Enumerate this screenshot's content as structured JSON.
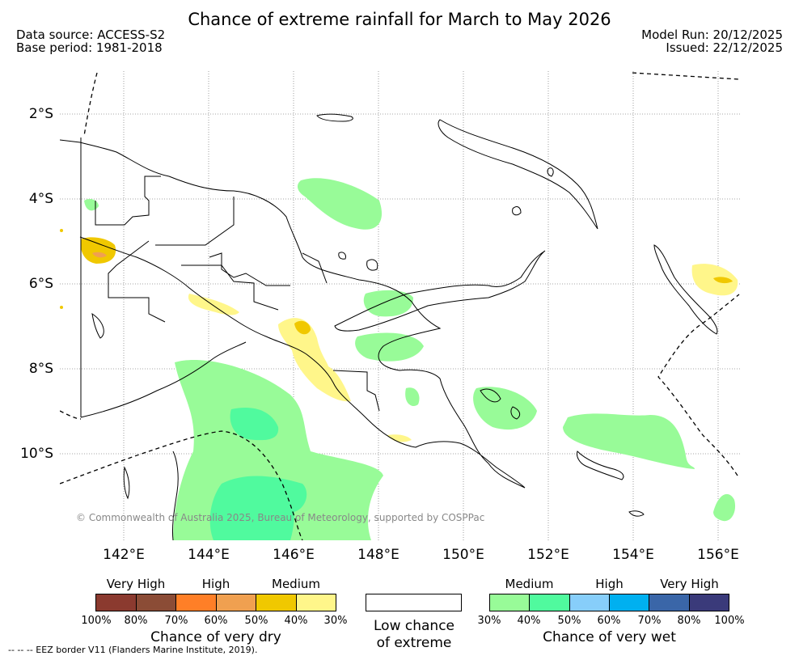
{
  "header": {
    "title": "Chance of extreme rainfall for March to May 2026",
    "data_source": "Data source: ACCESS-S2",
    "base_period": "Base period: 1981-2018",
    "model_run": "Model Run: 20/12/2025",
    "issued": "Issued: 22/12/2025"
  },
  "map": {
    "lat_labels": [
      "2°S",
      "4°S",
      "6°S",
      "8°S",
      "10°S"
    ],
    "lon_labels": [
      "142°E",
      "144°E",
      "146°E",
      "148°E",
      "150°E",
      "152°E",
      "154°E",
      "156°E"
    ],
    "copyright": "© Commonwealth of Australia 2025, Bureau of Meteorology, supported by COSPPac"
  },
  "legend": {
    "dry": {
      "levels": [
        "Very High",
        "High",
        "Medium"
      ],
      "ticks": [
        "100%",
        "80%",
        "70%",
        "60%",
        "50%",
        "40%",
        "30%"
      ],
      "colors": [
        "#8b3a2f",
        "#8b4c36",
        "#ff7f27",
        "#f0a050",
        "#f0c800",
        "#fff68a"
      ],
      "title": "Chance of very dry"
    },
    "neutral": {
      "title_line1": "Low chance",
      "title_line2": "of extreme"
    },
    "wet": {
      "levels": [
        "Medium",
        "High",
        "Very High"
      ],
      "ticks": [
        "30%",
        "40%",
        "50%",
        "60%",
        "70%",
        "80%",
        "100%"
      ],
      "colors": [
        "#98fb98",
        "#50fa9e",
        "#87cefa",
        "#00b0f0",
        "#3a66a8",
        "#3a3a7a"
      ],
      "title": "Chance of very wet"
    }
  },
  "footnote": "-- -- -- EEZ border V11 (Flanders Marine Institute, 2019)."
}
